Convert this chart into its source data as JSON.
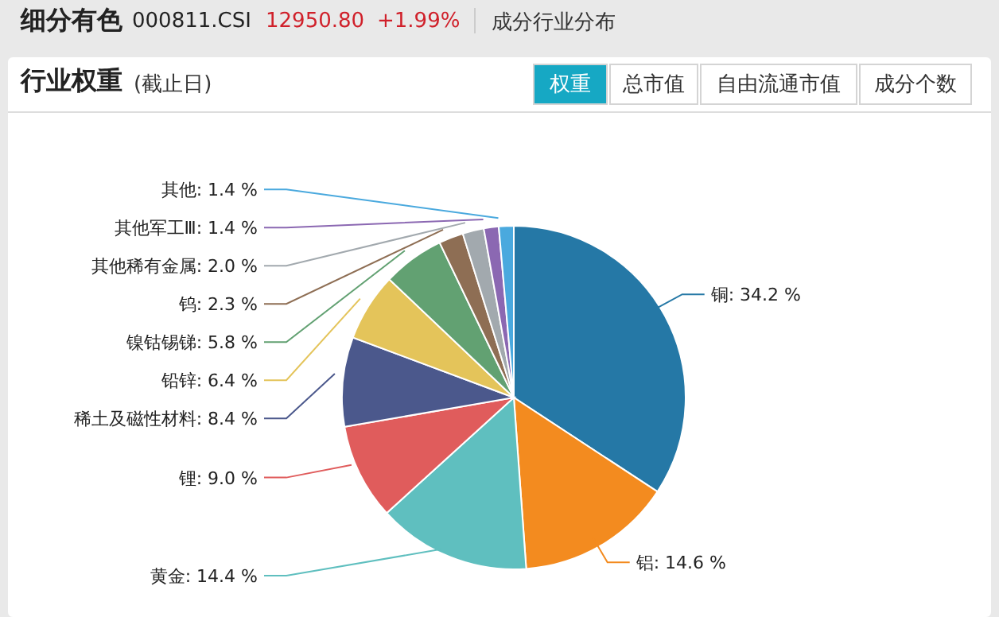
{
  "chart_data": {
    "type": "pie",
    "title": "细分有色",
    "subtitle": "行业权重",
    "annotations": [
      "000811.CSI",
      "12950.80",
      "+1.99%",
      "成分行业分布",
      "(截止日)",
      "权重",
      "总市值",
      "自由流通市值",
      "成分个数"
    ],
    "categories": [
      "铜",
      "铝",
      "黄金",
      "锂",
      "稀土及磁性材料",
      "铅锌",
      "镍钴锡锑",
      "钨",
      "其他稀有金属",
      "其他军工Ⅲ",
      "其他"
    ],
    "values": [
      34.2,
      14.6,
      14.4,
      9.0,
      8.4,
      6.4,
      5.8,
      2.3,
      2.0,
      1.4,
      1.4
    ],
    "value_labels": [
      "34.2 %",
      "14.6 %",
      "14.4 %",
      "9.0 %",
      "8.4 %",
      "6.4 %",
      "5.8 %",
      "2.3 %",
      "2.0 %",
      "1.4 %",
      "1.4 %"
    ],
    "colors": [
      "#2578a6",
      "#f38b1f",
      "#5fbfbf",
      "#e05c5c",
      "#4b588c",
      "#e4c45a",
      "#62a172",
      "#8e6e54",
      "#a2a9ae",
      "#8b68b2",
      "#4aa9de"
    ]
  }
}
